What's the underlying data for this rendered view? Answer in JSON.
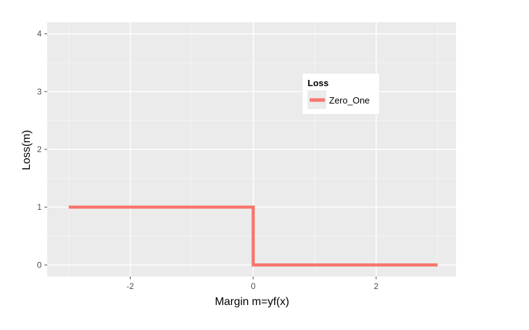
{
  "chart_data": {
    "type": "line",
    "xlabel": "Margin m=yf(x)",
    "ylabel": "Loss(m)",
    "xlim": [
      -3.35,
      3.3
    ],
    "ylim": [
      -0.2,
      4.2
    ],
    "x_ticks": [
      -2,
      0,
      2
    ],
    "x_tick_labels": [
      "-2",
      "0",
      "2"
    ],
    "y_ticks": [
      0,
      1,
      2,
      3,
      4
    ],
    "y_tick_labels": [
      "0",
      "1",
      "2",
      "3",
      "4"
    ],
    "grid": true,
    "legend": {
      "title": "Loss",
      "placement": "inside-top-right",
      "entries": [
        "Zero_One"
      ]
    },
    "series": [
      {
        "name": "Zero_One",
        "color": "#f8766d",
        "x": [
          -3,
          0,
          0,
          3
        ],
        "y": [
          1,
          1,
          0,
          0
        ]
      }
    ]
  },
  "colors": {
    "panel_background": "#ebebeb",
    "grid_major": "#ffffff",
    "grid_minor": "#f5f5f5",
    "tick_mark": "#4d4d4d"
  }
}
